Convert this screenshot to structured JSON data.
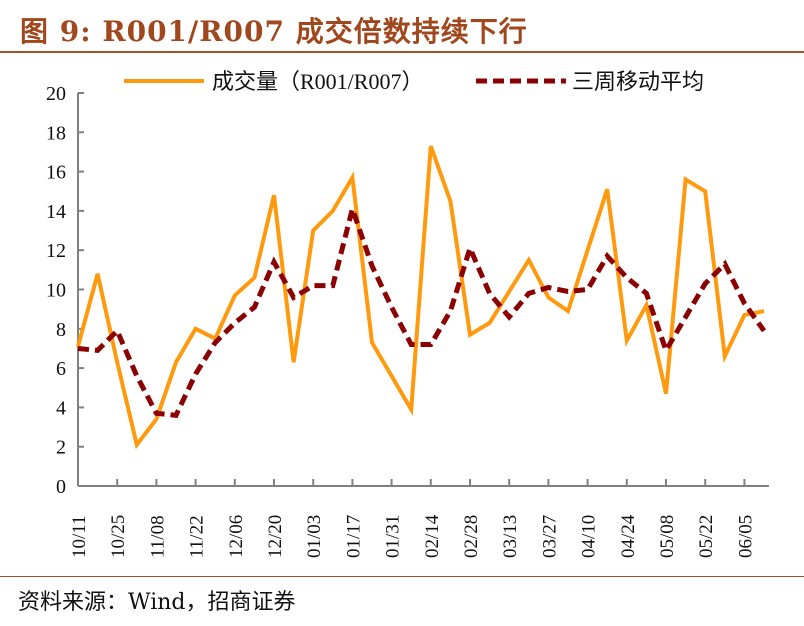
{
  "title": "图 9:  R001/R007 成交倍数持续下行",
  "source": "资料来源：Wind，招商证券",
  "chart_data": {
    "type": "line",
    "title": "",
    "xlabel": "",
    "ylabel": "",
    "ylim": [
      0,
      20
    ],
    "yticks": [
      0,
      2,
      4,
      6,
      8,
      10,
      12,
      14,
      16,
      18,
      20
    ],
    "xtick_labels": [
      "10/11",
      "10/25",
      "11/08",
      "11/22",
      "12/06",
      "12/20",
      "01/03",
      "01/17",
      "01/31",
      "02/14",
      "02/28",
      "03/13",
      "03/27",
      "04/10",
      "04/24",
      "05/08",
      "05/22",
      "06/05"
    ],
    "grid": false,
    "legend_position": "top",
    "series": [
      {
        "name": "成交量（R001/R007）",
        "color": "#FF9A0E",
        "style": "solid",
        "values": [
          7.1,
          10.8,
          6.3,
          2.1,
          3.4,
          6.3,
          8.0,
          7.5,
          9.7,
          10.6,
          14.8,
          6.3,
          13.0,
          14.0,
          15.7,
          7.3,
          5.6,
          3.9,
          17.3,
          14.5,
          7.7,
          8.3,
          9.9,
          11.5,
          9.6,
          8.9,
          12.0,
          15.1,
          7.4,
          9.2,
          4.7,
          15.6,
          15.0,
          6.6,
          8.7,
          8.9
        ]
      },
      {
        "name": "三周移动平均",
        "color": "#8B0000",
        "style": "dashed",
        "values": [
          7.0,
          6.9,
          7.9,
          5.6,
          3.7,
          3.6,
          5.7,
          7.3,
          8.3,
          9.1,
          11.4,
          9.6,
          10.2,
          10.2,
          14.1,
          11.2,
          9.1,
          7.2,
          7.2,
          8.9,
          12.1,
          9.8,
          8.6,
          9.8,
          10.1,
          9.9,
          10.0,
          11.7,
          10.6,
          9.8,
          6.9,
          8.6,
          10.3,
          11.3,
          9.3,
          7.9
        ]
      }
    ]
  }
}
